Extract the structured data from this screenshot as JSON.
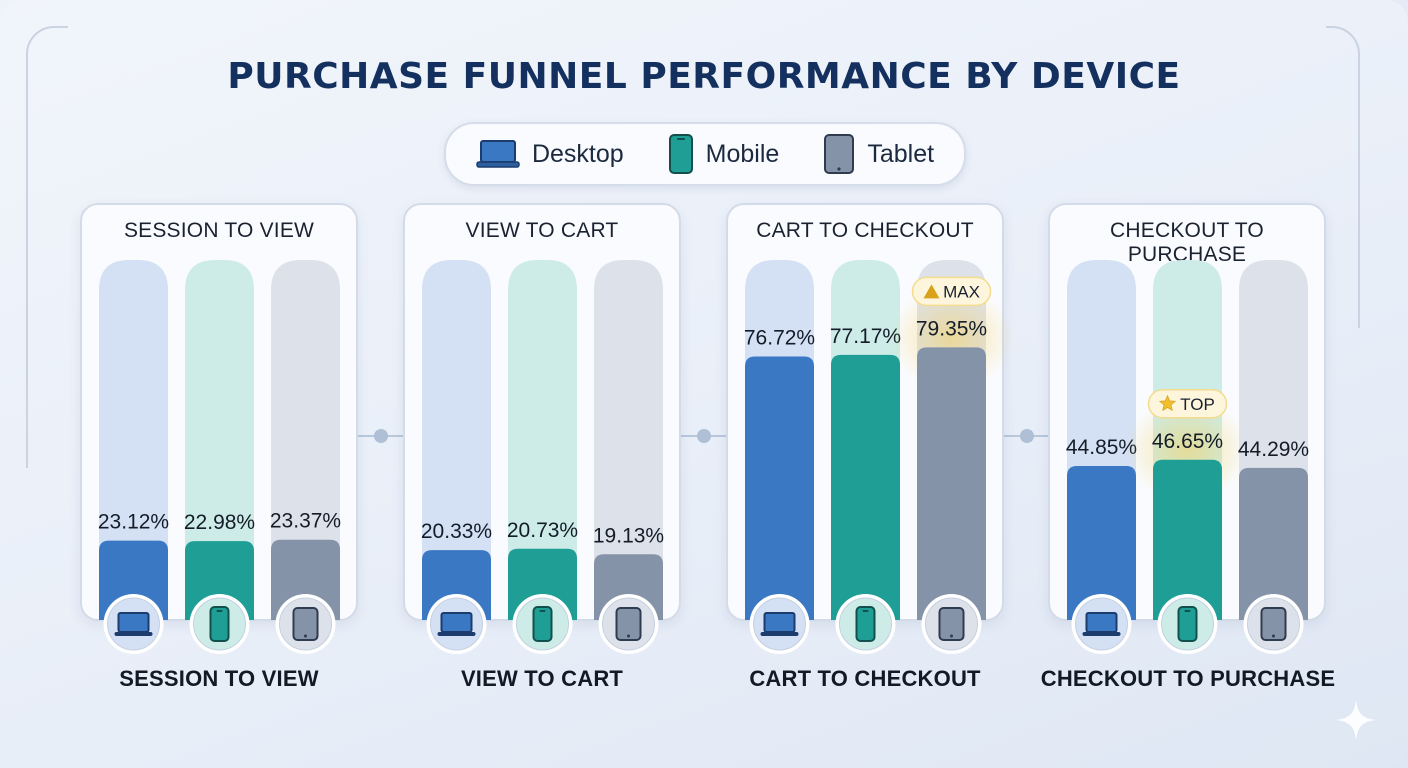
{
  "title": "PURCHASE FUNNEL PERFORMANCE BY DEVICE",
  "legend": [
    {
      "label": "Desktop",
      "color": "#3a78c4",
      "icon": "laptop-icon"
    },
    {
      "label": "Mobile",
      "color": "#1f9e96",
      "icon": "phone-icon"
    },
    {
      "label": "Tablet",
      "color": "#8593a8",
      "icon": "tablet-icon"
    }
  ],
  "colors": {
    "desktop": "#3a78c4",
    "mobile": "#1f9e96",
    "tablet": "#8593a8",
    "desktop_track": "#d4e1f4",
    "mobile_track": "#cdece8",
    "tablet_track": "#dde2ea",
    "highlight": "#f5cf57"
  },
  "chart_data": {
    "type": "bar",
    "title": "PURCHASE FUNNEL PERFORMANCE BY DEVICE",
    "unit": "%",
    "ylim": [
      0,
      100
    ],
    "categories": [
      "SESSION TO VIEW",
      "VIEW TO CART",
      "CART TO CHECKOUT",
      "CHECKOUT TO PURCHASE"
    ],
    "series": [
      {
        "name": "Desktop",
        "values": [
          23.12,
          20.33,
          76.72,
          44.85
        ]
      },
      {
        "name": "Mobile",
        "values": [
          22.98,
          20.73,
          77.17,
          46.65
        ]
      },
      {
        "name": "Tablet",
        "values": [
          23.37,
          19.13,
          79.35,
          44.29
        ]
      }
    ],
    "value_labels": [
      [
        "23.12%",
        "22.98%",
        "23.37%"
      ],
      [
        "20.33%",
        "20.73%",
        "19.13%"
      ],
      [
        "76.72%",
        "77.17%",
        "79.35%"
      ],
      [
        "44.85%",
        "46.65%",
        "44.29%"
      ]
    ],
    "annotations": [
      {
        "stage": 2,
        "series": 2,
        "text": "MAX",
        "icon": "triangle-icon"
      },
      {
        "stage": 3,
        "series": 1,
        "text": "TOP",
        "icon": "star-icon"
      }
    ],
    "legend_position": "top-center",
    "grid": false
  },
  "stages": [
    {
      "title": "SESSION TO VIEW",
      "bottom_label": "SESSION TO VIEW"
    },
    {
      "title": "VIEW TO CART",
      "bottom_label": "VIEW TO CART"
    },
    {
      "title": "CART TO CHECKOUT",
      "bottom_label": "CART TO CHECKOUT"
    },
    {
      "title": "CHECKOUT TO PURCHASE",
      "bottom_label": "CHECKOUT TO PURCHASE"
    }
  ]
}
